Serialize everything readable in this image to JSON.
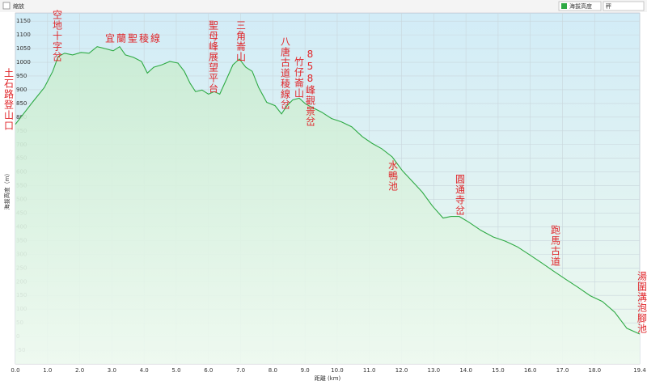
{
  "controls": {
    "zoom": "縮放",
    "unit_select": "秤"
  },
  "chart_data": {
    "type": "area",
    "x_label": "距離 (km)",
    "y_label": "海拔高度（m）",
    "x": [
      0,
      0.53,
      0.9,
      1.16,
      1.33,
      1.53,
      1.78,
      2.04,
      2.29,
      2.54,
      2.79,
      3.04,
      3.24,
      3.42,
      3.67,
      3.92,
      4.1,
      4.3,
      4.55,
      4.8,
      5.05,
      5.25,
      5.43,
      5.6,
      5.8,
      6.0,
      6.18,
      6.35,
      6.56,
      6.76,
      6.96,
      7.16,
      7.36,
      7.56,
      7.81,
      8.07,
      8.27,
      8.44,
      8.62,
      8.82,
      9.02,
      9.27,
      9.52,
      9.82,
      10.13,
      10.45,
      10.78,
      11.08,
      11.38,
      11.71,
      12.03,
      12.34,
      12.64,
      12.96,
      13.29,
      13.54,
      13.79,
      14.09,
      14.47,
      14.85,
      15.22,
      15.6,
      15.98,
      16.36,
      16.73,
      17.11,
      17.49,
      17.86,
      18.24,
      18.62,
      19.0,
      19.4
    ],
    "series": [
      {
        "name": "海拔高度",
        "color": "#2eaa44",
        "values": [
          774,
          854,
          908,
          967,
          1021,
          1033,
          1027,
          1036,
          1033,
          1057,
          1050,
          1042,
          1057,
          1027,
          1018,
          1003,
          961,
          982,
          991,
          1003,
          997,
          967,
          923,
          893,
          899,
          884,
          893,
          884,
          938,
          991,
          1012,
          982,
          967,
          908,
          854,
          842,
          812,
          842,
          863,
          869,
          848,
          833,
          818,
          795,
          783,
          765,
          729,
          705,
          685,
          655,
          604,
          565,
          527,
          476,
          432,
          438,
          438,
          417,
          387,
          363,
          348,
          327,
          298,
          268,
          238,
          208,
          179,
          149,
          128,
          89,
          30,
          9
        ]
      }
    ],
    "xlim": [
      0,
      19.4
    ],
    "ylim": [
      -100,
      1180
    ],
    "xticks": [
      {
        "value": 0,
        "label": "0.0"
      },
      {
        "value": 1,
        "label": "1.0"
      },
      {
        "value": 2,
        "label": "2.0"
      },
      {
        "value": 3,
        "label": "3.0"
      },
      {
        "value": 4,
        "label": "4.0"
      },
      {
        "value": 5,
        "label": "5.0"
      },
      {
        "value": 6,
        "label": "6.0"
      },
      {
        "value": 7,
        "label": "7.0"
      },
      {
        "value": 8,
        "label": "8.0"
      },
      {
        "value": 9,
        "label": "9.0"
      },
      {
        "value": 10,
        "label": "10.0"
      },
      {
        "value": 11,
        "label": "11.0"
      },
      {
        "value": 12,
        "label": "12.0"
      },
      {
        "value": 13,
        "label": "13.0"
      },
      {
        "value": 14,
        "label": "14.0"
      },
      {
        "value": 15,
        "label": "15.0"
      },
      {
        "value": 16,
        "label": "16.0"
      },
      {
        "value": 17,
        "label": "17.0"
      },
      {
        "value": 18,
        "label": "18.0"
      },
      19.4
    ],
    "yticks": [
      -50,
      0,
      50,
      100,
      150,
      200,
      250,
      300,
      350,
      400,
      450,
      500,
      550,
      600,
      650,
      700,
      750,
      800,
      850,
      900,
      950,
      1000,
      1050,
      1100,
      1150
    ],
    "grid": true,
    "annotations": [
      "土石路登山口",
      "空地十字岔",
      "宜蘭聖稜線",
      "聖母峰展望平台",
      "三角崙山",
      "八唐古道稜線岔",
      "竹仔崙山",
      "858峰觀景岔",
      "水鴨池",
      "圓通寺岔",
      "跑馬古道",
      "湯圍溝泡腳池"
    ]
  }
}
